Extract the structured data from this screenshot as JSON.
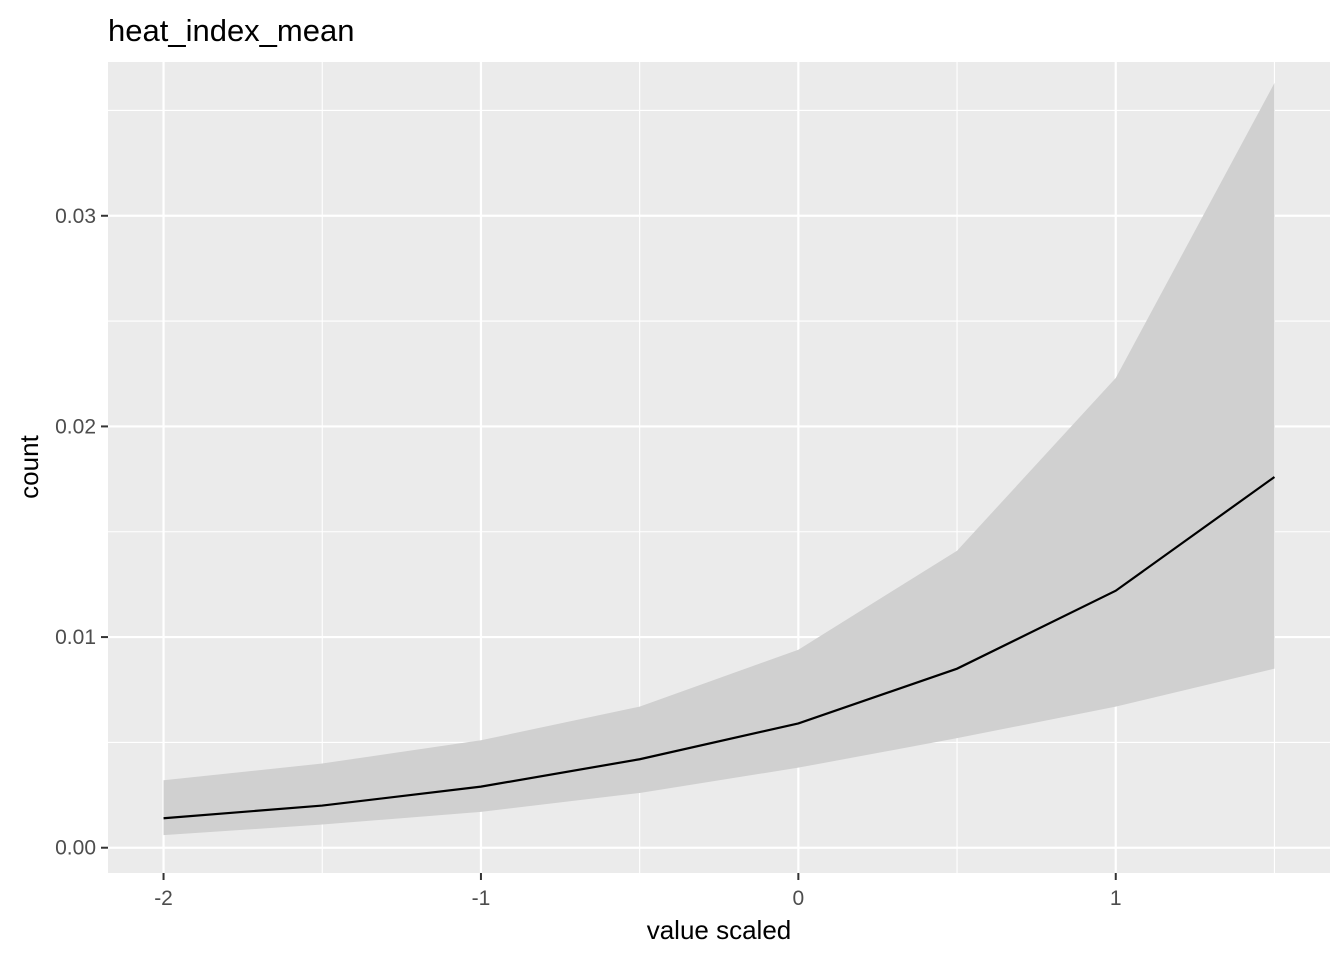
{
  "chart_data": {
    "type": "area",
    "title": "heat_index_mean",
    "xlabel": "value scaled",
    "ylabel": "count",
    "xlim": [
      -2.175,
      1.675
    ],
    "ylim": [
      -0.0012,
      0.0373
    ],
    "x_ticks": [
      {
        "value": -2,
        "label": "-2"
      },
      {
        "value": -1,
        "label": "-1"
      },
      {
        "value": 0,
        "label": "0"
      },
      {
        "value": 1,
        "label": "1"
      }
    ],
    "y_ticks": [
      {
        "value": 0.0,
        "label": "0.00"
      },
      {
        "value": 0.01,
        "label": "0.01"
      },
      {
        "value": 0.02,
        "label": "0.02"
      },
      {
        "value": 0.03,
        "label": "0.03"
      }
    ],
    "x_minor": [
      -1.5,
      -0.5,
      0.5,
      1.5
    ],
    "y_minor": [
      0.005,
      0.015,
      0.025,
      0.035
    ],
    "grid": true,
    "legend": "none",
    "colors": {
      "panel": "#ebebeb",
      "grid": "#ffffff",
      "ribbon": "#d0d0d0",
      "line": "#000000",
      "tick_text": "#4d4d4d",
      "tick_mark": "#333333"
    },
    "x": [
      -2,
      -1.5,
      -1,
      -0.5,
      0,
      0.5,
      1,
      1.5
    ],
    "series": [
      {
        "values": [
          0.0014,
          0.002,
          0.0029,
          0.0042,
          0.0059,
          0.0085,
          0.0122,
          0.0176
        ],
        "lower": [
          0.0006,
          0.0011,
          0.0017,
          0.0026,
          0.0038,
          0.0052,
          0.0067,
          0.0085
        ],
        "upper": [
          0.0032,
          0.004,
          0.0051,
          0.0067,
          0.0094,
          0.0141,
          0.0223,
          0.0363
        ]
      }
    ]
  }
}
